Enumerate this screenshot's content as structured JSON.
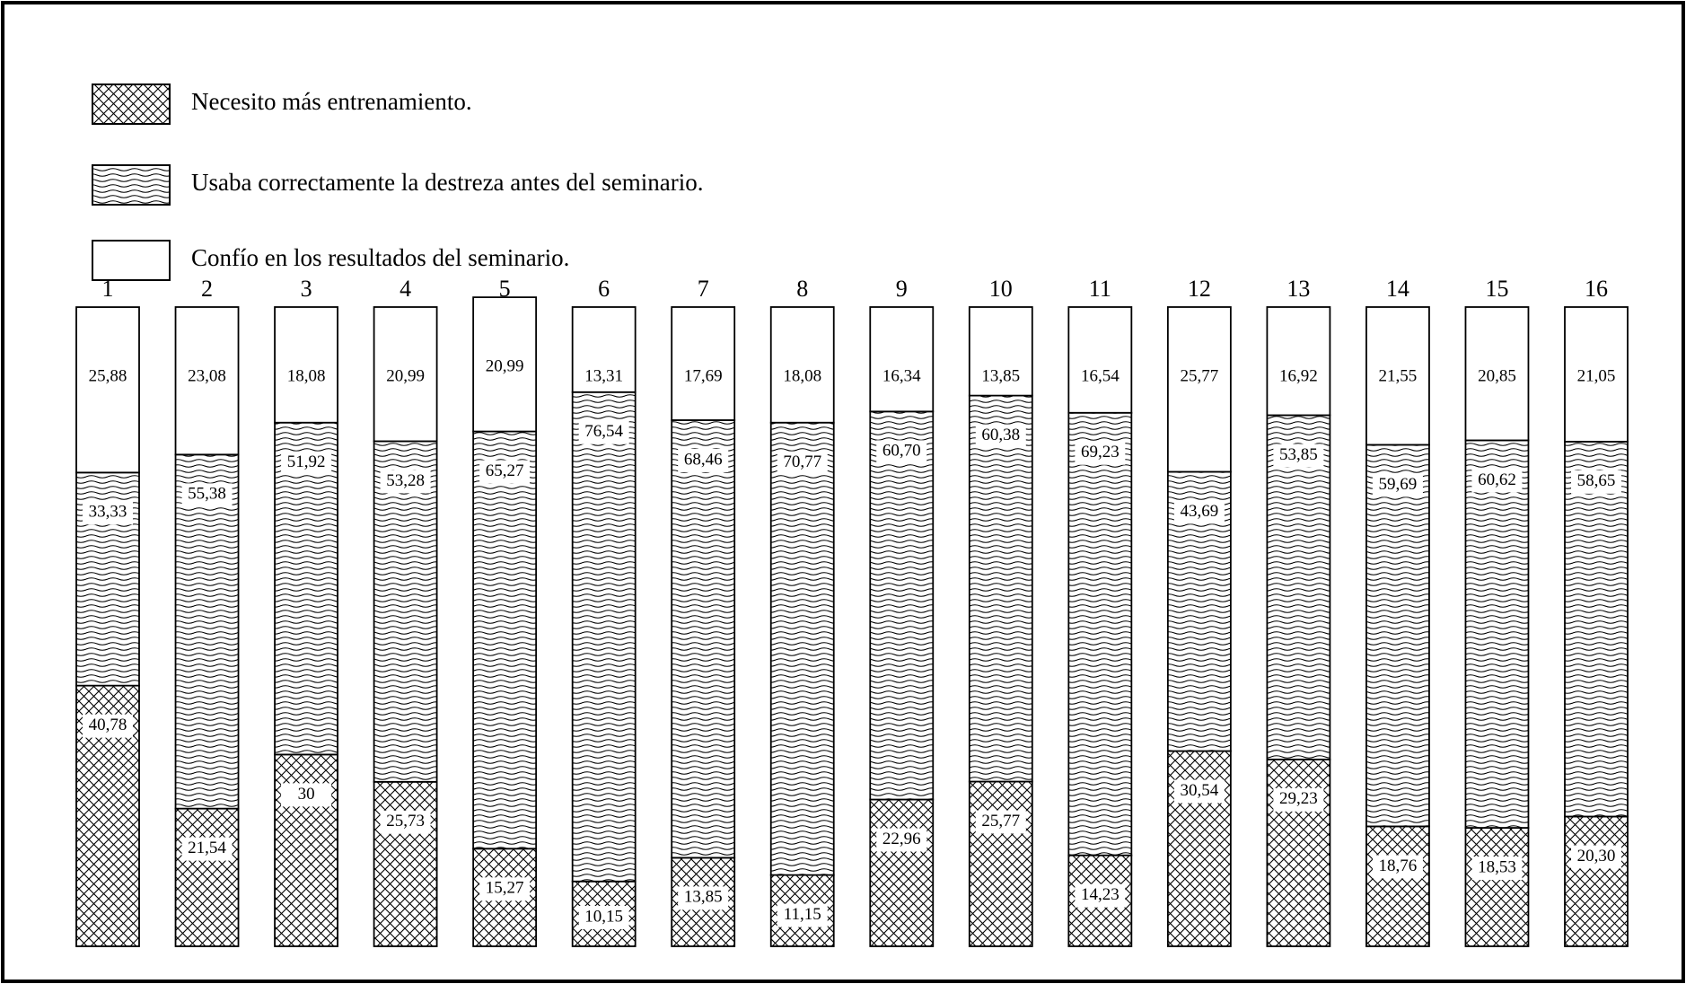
{
  "chart_data": {
    "type": "stacked-bar",
    "categories": [
      "1",
      "2",
      "3",
      "4",
      "5",
      "6",
      "7",
      "8",
      "9",
      "10",
      "11",
      "12",
      "13",
      "14",
      "15",
      "16"
    ],
    "ylim": [
      0,
      100
    ],
    "legend": "top-left",
    "series": [
      {
        "name": "Necesito más entrenamiento.",
        "color": "#000000",
        "pattern": "crosshatch",
        "values": [
          40.78,
          21.54,
          30,
          25.73,
          15.27,
          10.15,
          13.85,
          11.15,
          22.96,
          25.77,
          14.23,
          30.54,
          29.23,
          18.76,
          18.53,
          20.3
        ],
        "value_labels": [
          "40,78",
          "21,54",
          "30",
          "25,73",
          "15,27",
          "10,15",
          "13,85",
          "11,15",
          "22,96",
          "25,77",
          "14,23",
          "30,54",
          "29,23",
          "18,76",
          "18,53",
          "20,30"
        ]
      },
      {
        "name": "Usaba correctamente la destreza antes del seminario.",
        "color": "#000000",
        "pattern": "waves",
        "values": [
          33.33,
          55.38,
          51.92,
          53.28,
          65.27,
          76.54,
          68.46,
          70.77,
          60.7,
          60.38,
          69.23,
          43.69,
          53.85,
          59.69,
          60.62,
          58.65
        ],
        "value_labels": [
          "33,33",
          "55,38",
          "51,92",
          "53,28",
          "65,27",
          "76,54",
          "68,46",
          "70,77",
          "60,70",
          "60,38",
          "69,23",
          "43,69",
          "53,85",
          "59,69",
          "60,62",
          "58,65"
        ]
      },
      {
        "name": "Confío en los resultados del seminario.",
        "color": "#000000",
        "pattern": "none",
        "values": [
          25.88,
          23.08,
          18.08,
          20.99,
          20.99,
          13.31,
          17.69,
          18.08,
          16.34,
          13.85,
          16.54,
          25.77,
          16.92,
          21.55,
          20.85,
          21.05
        ],
        "value_labels": [
          "25,88",
          "23,08",
          "18,08",
          "20,99",
          "20,99",
          "13,31",
          "17,69",
          "18,08",
          "16,34",
          "13,85",
          "16,54",
          "25,77",
          "16,92",
          "21,55",
          "20,85",
          "21,05"
        ]
      }
    ]
  }
}
